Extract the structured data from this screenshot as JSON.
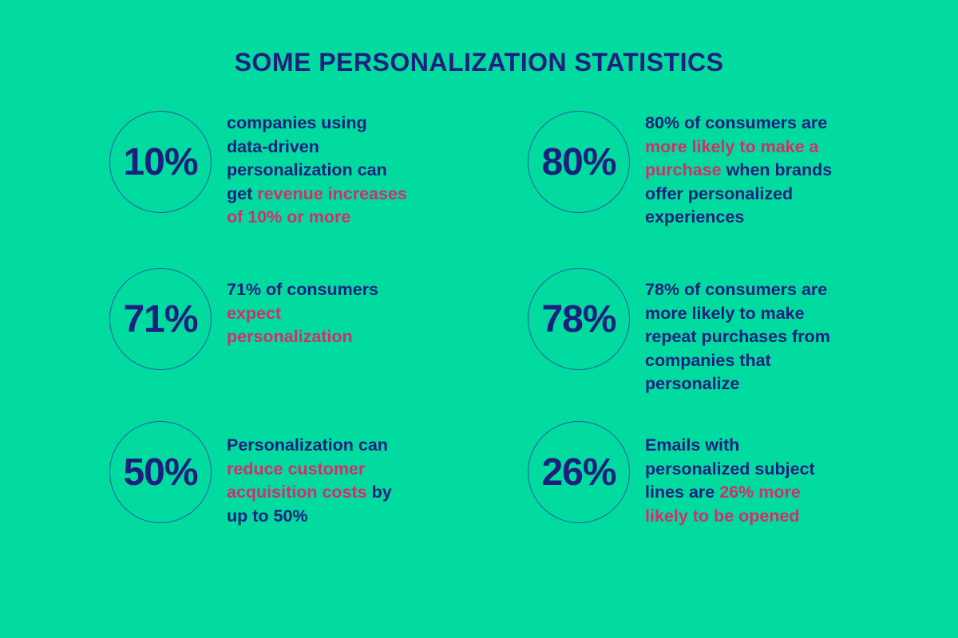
{
  "title": "SOME PERSONALIZATION STATISTICS",
  "colors": {
    "background": "#01dba0",
    "navy": "#1d1f7e",
    "pink": "#d22f68",
    "circle_stroke": "#2b55a5"
  },
  "chart_data": {
    "type": "table",
    "title": "SOME PERSONALIZATION STATISTICS",
    "categories": [
      "companies getting revenue increases of 10% or more from data-driven personalization",
      "consumers more likely to make a purchase when brands offer personalized experiences",
      "consumers who expect personalization",
      "consumers more likely to make repeat purchases from companies that personalize",
      "possible reduction of customer acquisition costs through personalization",
      "increase in open likelihood for emails with personalized subject lines"
    ],
    "values": [
      10,
      80,
      71,
      78,
      50,
      26
    ],
    "unit": "%"
  },
  "stats": [
    {
      "percent": "10%",
      "segments": [
        {
          "text": "companies using\ndata-driven\npersonalization can\nget ",
          "highlight": false
        },
        {
          "text": "revenue increases\nof 10% or more",
          "highlight": true
        }
      ]
    },
    {
      "percent": "80%",
      "segments": [
        {
          "text": "80% of consumers are\n",
          "highlight": false
        },
        {
          "text": "more likely to make a\npurchase",
          "highlight": true
        },
        {
          "text": " when brands\noffer personalized\nexperiences",
          "highlight": false
        }
      ]
    },
    {
      "percent": "71%",
      "segments": [
        {
          "text": "71% of consumers\n",
          "highlight": false
        },
        {
          "text": "expect\npersonalization",
          "highlight": true
        }
      ]
    },
    {
      "percent": "78%",
      "segments": [
        {
          "text": "78% of consumers are\nmore likely to make\nrepeat purchases from\ncompanies that\npersonalize",
          "highlight": false
        }
      ]
    },
    {
      "percent": "50%",
      "segments": [
        {
          "text": "Personalization can\n",
          "highlight": false
        },
        {
          "text": "reduce customer\nacquisition costs",
          "highlight": true
        },
        {
          "text": " by\nup to 50%",
          "highlight": false
        }
      ]
    },
    {
      "percent": "26%",
      "segments": [
        {
          "text": "Emails with\npersonalized subject\nlines are ",
          "highlight": false
        },
        {
          "text": "26% more\nlikely to be opened",
          "highlight": true
        }
      ]
    }
  ]
}
